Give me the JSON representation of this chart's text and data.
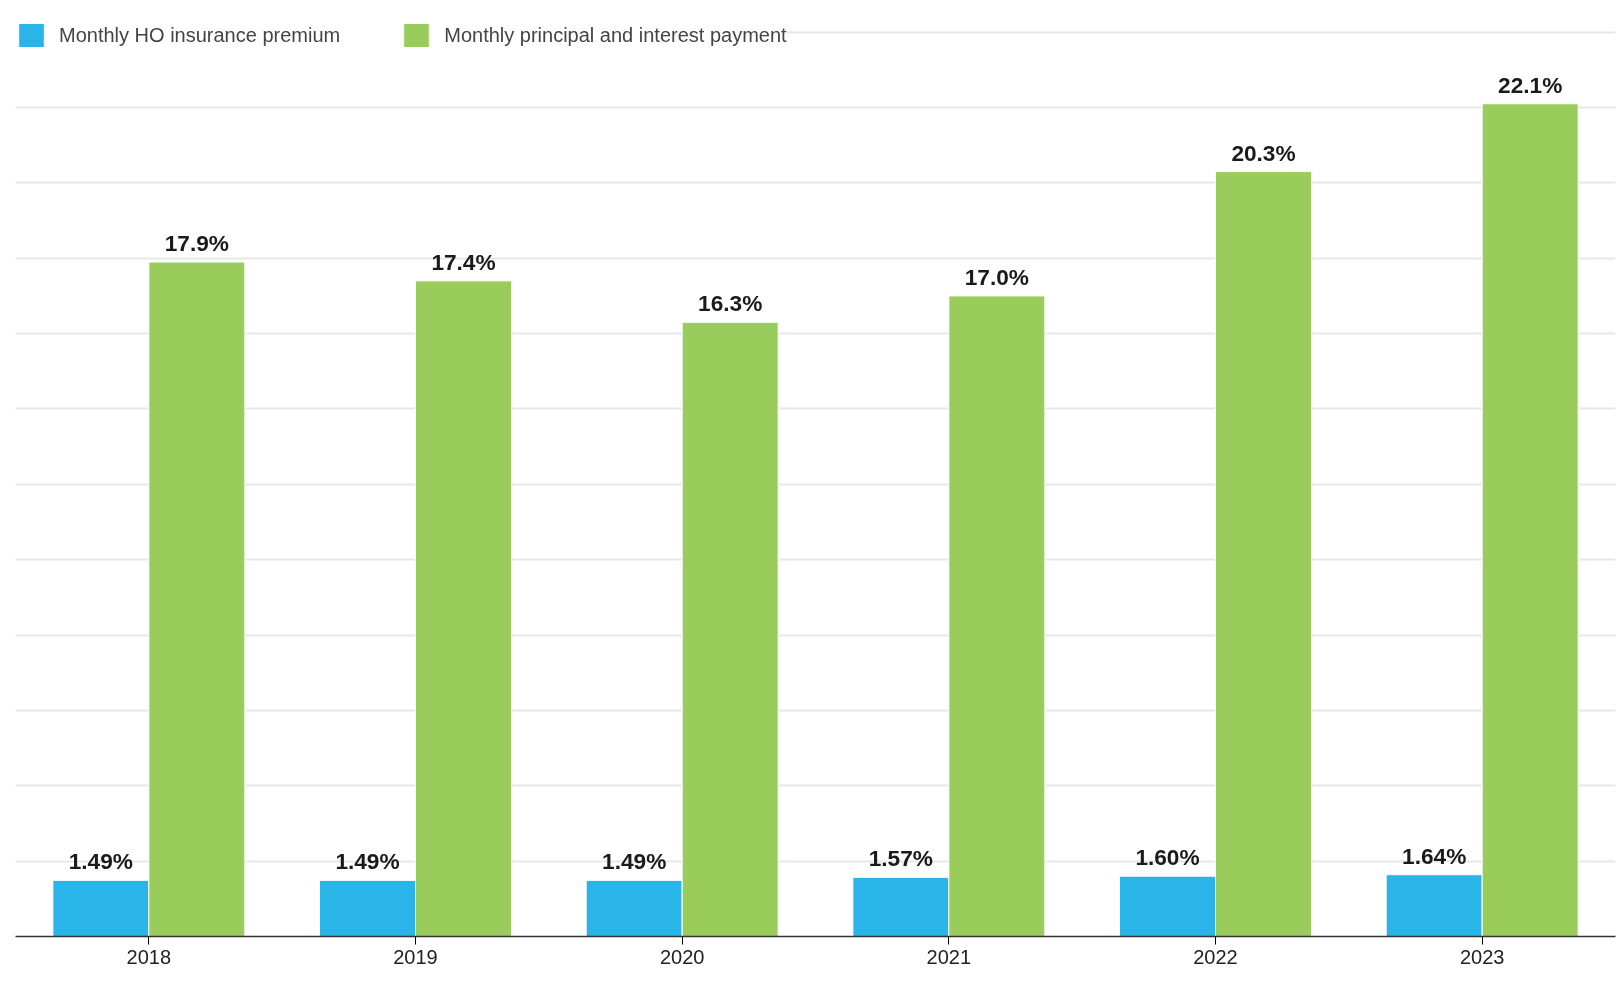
{
  "chart_data": {
    "type": "bar",
    "categories": [
      "2018",
      "2019",
      "2020",
      "2021",
      "2022",
      "2023"
    ],
    "series": [
      {
        "name": "Monthly HO insurance premium",
        "color": "#29b5e8",
        "values": [
          1.49,
          1.49,
          1.49,
          1.57,
          1.6,
          1.64
        ],
        "value_labels": [
          "1.49%",
          "1.49%",
          "1.49%",
          "1.57%",
          "1.60%",
          "1.64%"
        ]
      },
      {
        "name": "Monthly principal and interest payment",
        "color": "#99cc5a",
        "values": [
          17.9,
          17.4,
          16.3,
          17.0,
          20.3,
          22.1
        ],
        "value_labels": [
          "17.9%",
          "17.4%",
          "16.3%",
          "17.0%",
          "20.3%",
          "22.1%"
        ]
      }
    ],
    "tick_labels": "x",
    "grid": "y",
    "legend": "top left"
  }
}
